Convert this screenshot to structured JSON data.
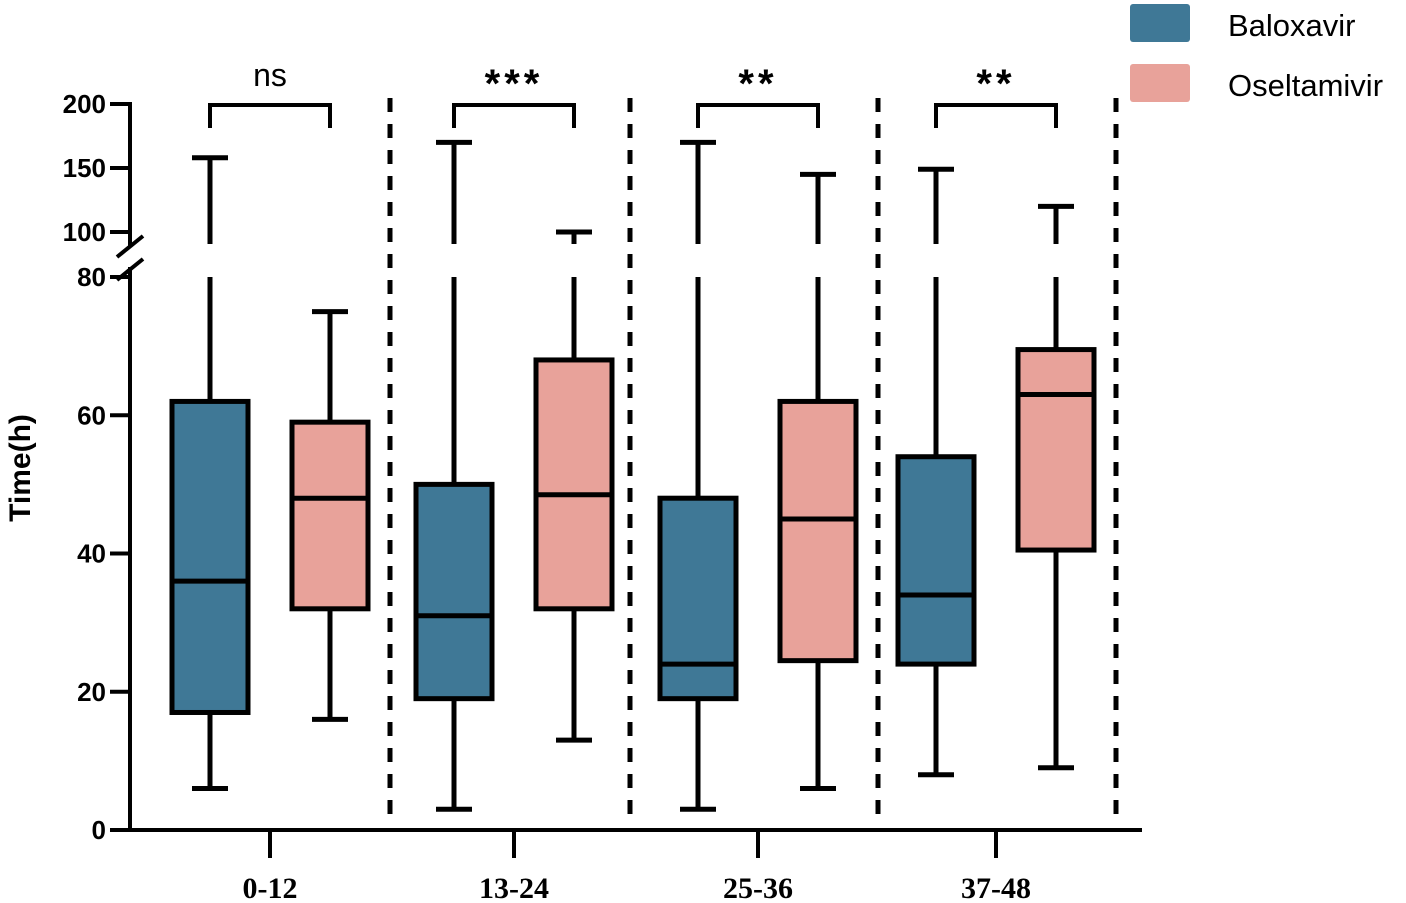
{
  "chart_data": {
    "type": "boxplot",
    "ylabel": "Time(h)",
    "xlabel": "",
    "y_axis": {
      "lower_segment": {
        "range": [
          0,
          80
        ],
        "ticks": [
          0,
          20,
          40,
          60,
          80
        ],
        "tick_labels": [
          "0",
          "20",
          "40",
          "60",
          "80"
        ]
      },
      "upper_segment": {
        "range": [
          100,
          200
        ],
        "ticks": [
          100,
          150,
          200
        ],
        "tick_labels": [
          "100",
          "150",
          "200"
        ]
      },
      "axis_break": [
        80,
        100
      ]
    },
    "categories": [
      "0-12",
      "13-24",
      "25-36",
      "37-48"
    ],
    "series": [
      {
        "name": "Baloxavir",
        "color": "#3f7896",
        "boxes": [
          {
            "min": 6,
            "q1": 17,
            "median": 36,
            "q3": 62,
            "max": 158
          },
          {
            "min": 3,
            "q1": 19,
            "median": 31,
            "q3": 50,
            "max": 170
          },
          {
            "min": 3,
            "q1": 19,
            "median": 24,
            "q3": 48,
            "max": 170
          },
          {
            "min": 8,
            "q1": 24,
            "median": 34,
            "q3": 54,
            "max": 149
          }
        ]
      },
      {
        "name": "Oseltamivir",
        "color": "#e8a29a",
        "boxes": [
          {
            "min": 16,
            "q1": 32,
            "median": 48,
            "q3": 59,
            "max": 75
          },
          {
            "min": 13,
            "q1": 32,
            "median": 48.5,
            "q3": 68,
            "max": 97
          },
          {
            "min": 6,
            "q1": 24.5,
            "median": 45,
            "q3": 62,
            "max": 145
          },
          {
            "min": 9,
            "q1": 40.5,
            "median": 63,
            "q3": 69.5,
            "max": 120
          }
        ]
      }
    ],
    "significance": [
      "ns",
      "***",
      "**",
      "**"
    ],
    "legend": {
      "position": "top-right",
      "entries": [
        "Baloxavir",
        "Oseltamivir"
      ]
    }
  }
}
